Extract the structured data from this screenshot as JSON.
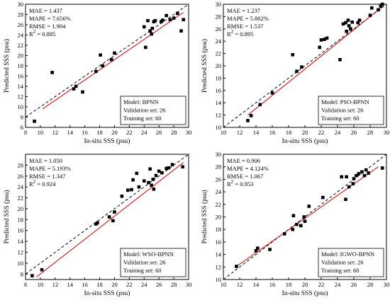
{
  "figure": {
    "shared_xlabel": "In-situ SSS (psu)",
    "shared_ylabel": "Predicted SSS (psu)"
  },
  "chart_data": [
    {
      "type": "scatter",
      "title": "",
      "xlabel": "In-situ SSS (psu)",
      "ylabel": "Predicted SSS (psu)",
      "xlim": [
        8,
        30
      ],
      "ylim": [
        6,
        30
      ],
      "xticks": [
        8,
        10,
        12,
        14,
        16,
        18,
        20,
        22,
        24,
        26,
        28,
        30
      ],
      "yticks": [
        6,
        8,
        10,
        12,
        14,
        16,
        18,
        20,
        22,
        24,
        26,
        28,
        30
      ],
      "grid": false,
      "stats": [
        "MAE = 1.437",
        "MAPE = 7.656%",
        "RMSE = 1.904"
      ],
      "r2_value": "0.885",
      "legend_box": [
        "Model: BPNN",
        "Validation set: 26",
        "Training set: 60"
      ],
      "reference_line": "1:1 dashed",
      "fit_line": [
        [
          10.3,
          9.6
        ],
        [
          29.3,
          28.4
        ]
      ],
      "points": [
        [
          9.2,
          7.2
        ],
        [
          11.6,
          16.7
        ],
        [
          14.5,
          13.5
        ],
        [
          14.8,
          14.0
        ],
        [
          15.7,
          12.9
        ],
        [
          17.5,
          16.9
        ],
        [
          18.1,
          20.1
        ],
        [
          18.4,
          18.0
        ],
        [
          19.6,
          19.2
        ],
        [
          20.0,
          20.5
        ],
        [
          24.0,
          25.6
        ],
        [
          24.2,
          21.6
        ],
        [
          24.5,
          26.8
        ],
        [
          24.8,
          24.8
        ],
        [
          25.0,
          24.2
        ],
        [
          25.1,
          25.3
        ],
        [
          25.3,
          26.6
        ],
        [
          25.5,
          26.8
        ],
        [
          26.3,
          26.6
        ],
        [
          26.5,
          26.9
        ],
        [
          27.0,
          27.8
        ],
        [
          27.5,
          27.0
        ],
        [
          28.0,
          27.3
        ],
        [
          28.5,
          28.2
        ],
        [
          29.0,
          24.8
        ],
        [
          29.3,
          27.0
        ]
      ]
    },
    {
      "type": "scatter",
      "title": "",
      "xlabel": "In-situ SSS (psu)",
      "ylabel": "Predicted SSS (psu)",
      "xlim": [
        10,
        30
      ],
      "ylim": [
        10,
        30
      ],
      "xticks": [
        10,
        12,
        14,
        16,
        18,
        20,
        22,
        24,
        26,
        28,
        30
      ],
      "yticks": [
        10,
        12,
        14,
        16,
        18,
        20,
        22,
        24,
        26,
        28,
        30
      ],
      "grid": false,
      "stats": [
        "MAE = 1.237",
        "MAPE = 5.802%",
        "RMSE = 1.537"
      ],
      "r2_value": "0.895",
      "legend_box": [
        "Model: PSO-BPNN",
        "Validation set: 26",
        "Training set: 60"
      ],
      "reference_line": "1:1 dashed",
      "fit_line": [
        [
          13.0,
          12.0
        ],
        [
          29.5,
          29.6
        ]
      ],
      "points": [
        [
          13.0,
          11.1
        ],
        [
          13.4,
          11.9
        ],
        [
          14.5,
          13.7
        ],
        [
          16.0,
          15.6
        ],
        [
          18.5,
          21.8
        ],
        [
          19.0,
          19.1
        ],
        [
          19.6,
          19.8
        ],
        [
          21.8,
          23.0
        ],
        [
          22.0,
          24.2
        ],
        [
          22.4,
          24.3
        ],
        [
          22.7,
          24.5
        ],
        [
          24.3,
          21.0
        ],
        [
          24.7,
          26.8
        ],
        [
          25.0,
          27.0
        ],
        [
          25.1,
          25.6
        ],
        [
          25.3,
          27.4
        ],
        [
          25.4,
          26.5
        ],
        [
          25.6,
          26.0
        ],
        [
          25.8,
          27.1
        ],
        [
          26.5,
          27.0
        ],
        [
          26.7,
          27.4
        ],
        [
          28.0,
          28.2
        ],
        [
          28.2,
          29.4
        ],
        [
          29.0,
          29.1
        ],
        [
          29.3,
          29.7
        ],
        [
          29.5,
          30.0
        ]
      ]
    },
    {
      "type": "scatter",
      "title": "",
      "xlabel": "In-situ SSS (psu)",
      "ylabel": "Predicted SSS (psu)",
      "xlim": [
        8,
        30
      ],
      "ylim": [
        7,
        30
      ],
      "xticks": [
        8,
        10,
        12,
        14,
        16,
        18,
        20,
        22,
        24,
        26,
        28,
        30
      ],
      "yticks": [
        8,
        10,
        12,
        14,
        16,
        18,
        20,
        22,
        24,
        26,
        28
      ],
      "grid": false,
      "stats": [
        "MAE = 1.050",
        "MAPE = 5.193%",
        "RMSE = 1.347"
      ],
      "r2_value": "0.924",
      "legend_box": [
        "Model: WSO-BPNN",
        "Validation set: 26",
        "Training set: 60"
      ],
      "reference_line": "1:1 dashed",
      "fit_line": [
        [
          9.5,
          7.5
        ],
        [
          29.3,
          28.5
        ]
      ],
      "points": [
        [
          8.9,
          7.7
        ],
        [
          10.2,
          8.8
        ],
        [
          17.5,
          17.2
        ],
        [
          17.7,
          17.4
        ],
        [
          19.3,
          18.5
        ],
        [
          19.8,
          17.8
        ],
        [
          20.0,
          19.4
        ],
        [
          21.0,
          22.3
        ],
        [
          21.8,
          23.4
        ],
        [
          22.3,
          23.5
        ],
        [
          22.5,
          25.3
        ],
        [
          23.0,
          26.5
        ],
        [
          23.3,
          24.0
        ],
        [
          24.0,
          25.1
        ],
        [
          24.6,
          24.8
        ],
        [
          24.8,
          27.3
        ],
        [
          25.0,
          24.3
        ],
        [
          25.2,
          25.4
        ],
        [
          25.3,
          23.6
        ],
        [
          25.6,
          26.1
        ],
        [
          26.0,
          26.9
        ],
        [
          26.4,
          26.6
        ],
        [
          27.0,
          27.4
        ],
        [
          27.3,
          27.5
        ],
        [
          27.8,
          28.1
        ],
        [
          29.2,
          27.7
        ]
      ]
    },
    {
      "type": "scatter",
      "title": "",
      "xlabel": "In-situ SSS (psu)",
      "ylabel": "Predicted SSS (psu)",
      "xlim": [
        10,
        30
      ],
      "ylim": [
        10,
        30
      ],
      "xticks": [
        10,
        12,
        14,
        16,
        18,
        20,
        22,
        24,
        26,
        28,
        30
      ],
      "yticks": [
        10,
        12,
        14,
        16,
        18,
        20,
        22,
        24,
        26,
        28,
        30
      ],
      "grid": false,
      "stats": [
        "MAE = 0.906",
        "MAPE = 4.124%",
        "RMSE = 1.067"
      ],
      "r2_value": "0.953",
      "legend_box": [
        "Model: IGWO-BPNN",
        "Validation set: 26",
        "Training set: 60"
      ],
      "reference_line": "1:1 dashed",
      "fit_line": [
        [
          11.5,
          12.0
        ],
        [
          29.0,
          28.0
        ]
      ],
      "points": [
        [
          11.6,
          12.1
        ],
        [
          14.0,
          14.6
        ],
        [
          14.2,
          15.0
        ],
        [
          15.7,
          14.8
        ],
        [
          17.5,
          17.3
        ],
        [
          18.5,
          18.0
        ],
        [
          18.6,
          20.2
        ],
        [
          19.0,
          18.8
        ],
        [
          19.5,
          18.6
        ],
        [
          19.9,
          20.0
        ],
        [
          20.0,
          19.3
        ],
        [
          20.5,
          21.7
        ],
        [
          22.2,
          23.1
        ],
        [
          24.5,
          26.4
        ],
        [
          25.0,
          22.8
        ],
        [
          25.1,
          26.4
        ],
        [
          25.4,
          24.8
        ],
        [
          25.9,
          25.3
        ],
        [
          26.0,
          26.1
        ],
        [
          26.3,
          26.6
        ],
        [
          26.6,
          26.9
        ],
        [
          27.0,
          27.2
        ],
        [
          27.3,
          26.6
        ],
        [
          27.5,
          27.5
        ],
        [
          27.8,
          27.0
        ],
        [
          29.5,
          27.8
        ]
      ]
    }
  ],
  "colors": {
    "axis": "#000000",
    "fit_line": "#e01010",
    "reference_line": "#000000",
    "points": "#000000"
  }
}
